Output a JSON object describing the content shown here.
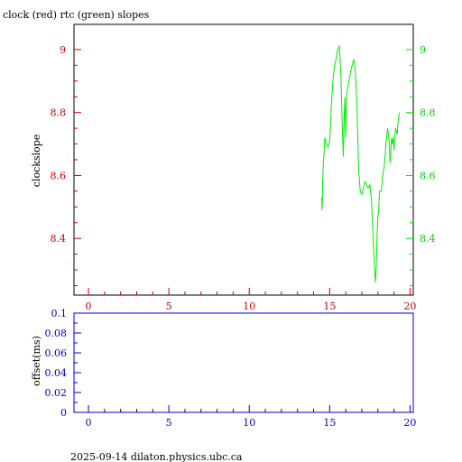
{
  "colors": {
    "clock": "#cc0000",
    "rtc": "#00ee00",
    "offset": "#0000cc",
    "text": "#000000"
  },
  "footer": "2025-09-14  dilaton.physics.ubc.ca",
  "chart_data": [
    {
      "type": "line",
      "title": "clock (red) rtc (green) slopes",
      "ylabel": "clockslope",
      "xlim": [
        -0.9,
        20.2
      ],
      "ylim": [
        8.22,
        9.08
      ],
      "x_ticks": [
        0,
        5,
        10,
        15,
        20
      ],
      "x_tick_labels": [
        "0",
        "5",
        "10",
        "15",
        "20"
      ],
      "y_ticks": [
        8.4,
        8.6,
        8.8,
        9
      ],
      "y_tick_labels": [
        "8.4",
        "8.6",
        "8.8",
        "9"
      ],
      "y_tick_labels_right": [
        "8.4",
        "8.6",
        "8.8",
        "9"
      ],
      "grid": false,
      "series": [
        {
          "color": "#00ee00",
          "x": [
            14.5,
            14.53,
            14.56,
            14.6,
            14.65,
            14.7,
            14.8,
            14.9,
            15.0,
            15.05,
            15.1,
            15.2,
            15.3,
            15.4,
            15.5,
            15.6,
            15.7,
            15.75,
            15.8,
            15.85,
            15.9,
            15.95,
            16.0,
            16.05,
            16.1,
            16.2,
            16.3,
            16.4,
            16.5,
            16.6,
            16.7,
            16.75,
            16.8,
            16.9,
            17.0,
            17.1,
            17.2,
            17.3,
            17.4,
            17.5,
            17.6,
            17.7,
            17.8,
            17.85,
            17.9,
            17.95,
            18.0,
            18.05,
            18.1,
            18.2,
            18.3,
            18.4,
            18.5,
            18.6,
            18.7,
            18.75,
            18.8,
            18.85,
            18.9,
            18.95,
            19.0,
            19.05,
            19.1,
            19.15,
            19.2,
            19.25,
            19.3,
            19.35
          ],
          "y": [
            8.53,
            8.49,
            8.57,
            8.63,
            8.67,
            8.72,
            8.7,
            8.69,
            8.71,
            8.75,
            8.82,
            8.9,
            8.95,
            8.97,
            9.0,
            9.01,
            8.92,
            8.82,
            8.73,
            8.66,
            8.78,
            8.85,
            8.72,
            8.84,
            8.87,
            8.9,
            8.93,
            8.95,
            8.97,
            8.93,
            8.82,
            8.72,
            8.62,
            8.55,
            8.54,
            8.56,
            8.58,
            8.57,
            8.56,
            8.57,
            8.52,
            8.4,
            8.3,
            8.26,
            8.31,
            8.41,
            8.47,
            8.49,
            8.55,
            8.55,
            8.6,
            8.63,
            8.7,
            8.75,
            8.71,
            8.64,
            8.67,
            8.72,
            8.7,
            8.72,
            8.68,
            8.72,
            8.75,
            8.74,
            8.73,
            8.77,
            8.79,
            8.8
          ]
        }
      ]
    },
    {
      "type": "line",
      "ylabel": "offset(ms)",
      "xlim": [
        -0.9,
        20.2
      ],
      "ylim": [
        0,
        0.1
      ],
      "x_ticks": [
        0,
        5,
        10,
        15,
        20
      ],
      "x_tick_labels": [
        "0",
        "5",
        "10",
        "15",
        "20"
      ],
      "y_ticks": [
        0,
        0.02,
        0.04,
        0.06,
        0.08,
        0.1
      ],
      "y_tick_labels": [
        "0",
        "0.02",
        "0.04",
        "0.06",
        "0.08",
        "0.1"
      ],
      "grid": false,
      "series": []
    }
  ]
}
